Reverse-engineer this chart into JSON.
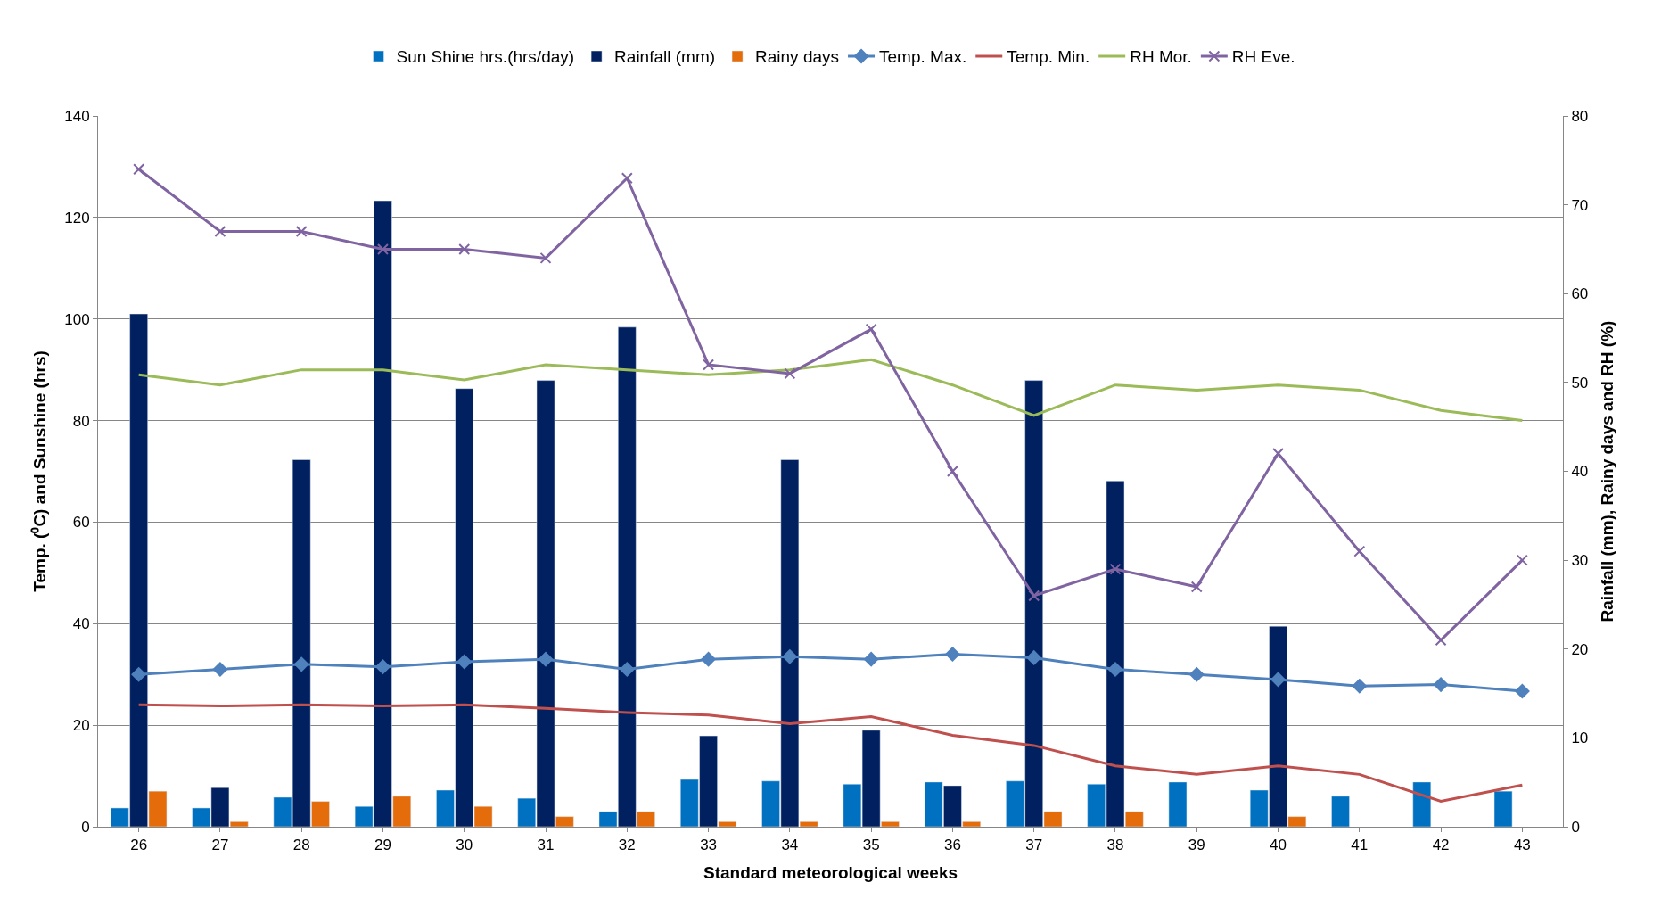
{
  "chart_data": {
    "type": "bar",
    "xlabel": "Standard meteorological weeks",
    "ylabel": "Temp. (⁰C) and Sunshine (hrs)",
    "y2label": "Rainfall (mm), Rainy days and RH (%)",
    "categories": [
      "26",
      "27",
      "28",
      "29",
      "30",
      "31",
      "32",
      "33",
      "34",
      "35",
      "36",
      "37",
      "38",
      "39",
      "40",
      "41",
      "42",
      "43"
    ],
    "ylim": [
      0,
      140
    ],
    "yticks": [
      0,
      20,
      40,
      60,
      80,
      100,
      120,
      140
    ],
    "y2lim": [
      0,
      80
    ],
    "y2ticks": [
      0,
      10,
      20,
      30,
      40,
      50,
      60,
      70,
      80
    ],
    "grid": "y",
    "legend": "top",
    "series": [
      {
        "name": "Sun Shine hrs.(hrs/day)",
        "color": "#0070c0",
        "values": [
          3.7,
          3.7,
          5.8,
          4,
          7.2,
          5.6,
          3,
          9.3,
          9,
          8.4,
          8.8,
          9,
          8.4,
          8.8,
          7.2,
          6,
          8.8,
          7
        ]
      },
      {
        "name": "Rainfall (mm)",
        "color": "#002060",
        "values": [
          101,
          7.7,
          72.3,
          123.3,
          86.3,
          87.9,
          98.4,
          17.9,
          72.3,
          19,
          8.1,
          87.9,
          68.1,
          null,
          39.5,
          null,
          null,
          null
        ]
      },
      {
        "name": "Rainy days",
        "color": "#e46c0a",
        "values": [
          7,
          1,
          5,
          6,
          4,
          2,
          3,
          1,
          1,
          1,
          1,
          3,
          3,
          null,
          2,
          null,
          null,
          null
        ]
      },
      {
        "name": "Temp. Max.",
        "type": "line",
        "color": "#4f81bd",
        "marker": "diamond",
        "values": [
          30,
          31,
          32,
          31.5,
          32.5,
          33,
          31,
          33,
          33.5,
          33,
          34,
          33.3,
          31,
          30,
          29,
          27.7,
          28,
          26.7
        ]
      },
      {
        "name": "Temp. Min.",
        "type": "line",
        "color": "#c0504d",
        "marker": "none",
        "values": [
          24,
          23.8,
          24,
          23.8,
          24,
          23.3,
          22.5,
          22,
          20.3,
          21.7,
          18,
          16,
          12,
          10.3,
          12,
          10.3,
          5,
          8.2
        ]
      },
      {
        "name": "RH Mor.",
        "type": "line",
        "color": "#9bbb59",
        "marker": "none",
        "values": [
          89,
          87,
          90,
          90,
          88,
          91,
          90,
          89,
          90,
          92,
          87,
          81,
          87,
          86,
          87,
          86,
          82,
          80
        ]
      },
      {
        "name": "RH Eve.",
        "type": "line",
        "color": "#8064a2",
        "marker": "cross",
        "axis": "y2",
        "values": [
          74,
          67,
          67,
          65,
          65,
          64,
          73,
          52,
          51,
          56,
          40,
          26,
          29,
          27,
          42,
          31,
          21,
          30
        ]
      }
    ]
  }
}
